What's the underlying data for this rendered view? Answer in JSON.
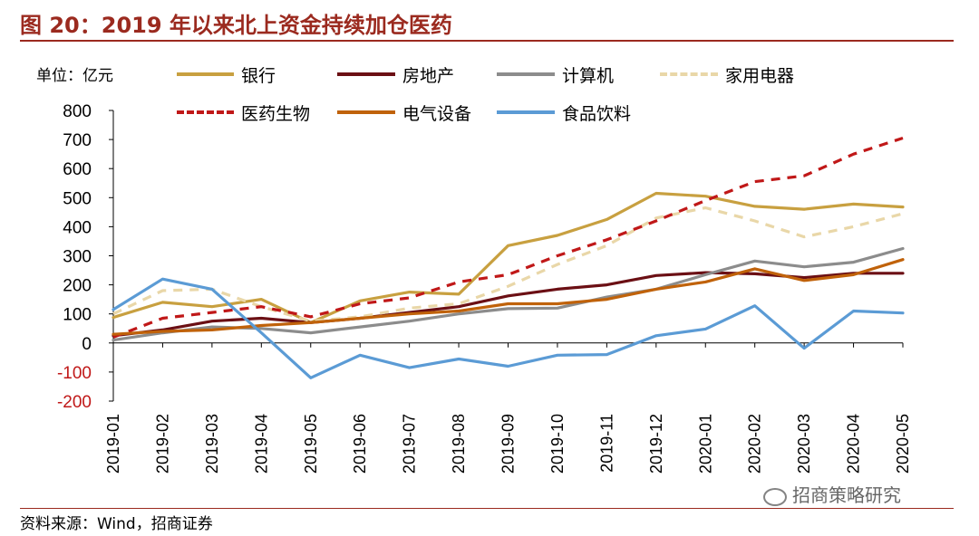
{
  "header": {
    "title": "图 20：2019 年以来北上资金持续加仓医药"
  },
  "footer": {
    "source": "资料来源：Wind，招商证券",
    "watermark": "招商策略研究"
  },
  "colors": {
    "title": "#9b2a1f",
    "bank": "#c8a040",
    "realestate": "#6b0f14",
    "computer": "#8c8c8c",
    "appliance": "#e9d7a8",
    "pharma": "#c01818",
    "electrical": "#c0620a",
    "food": "#5b9bd5"
  },
  "chart_data": {
    "type": "line",
    "unit_label": "单位：亿元",
    "x": [
      "2019-01",
      "2019-02",
      "2019-03",
      "2019-04",
      "2019-05",
      "2019-06",
      "2019-07",
      "2019-08",
      "2019-09",
      "2019-10",
      "2019-11",
      "2019-12",
      "2020-01",
      "2020-02",
      "2020-03",
      "2020-04",
      "2020-05"
    ],
    "ylim": [
      -200,
      800
    ],
    "yticks": [
      "800",
      "700",
      "600",
      "500",
      "400",
      "300",
      "200",
      "100",
      "0",
      "-100",
      "-200"
    ],
    "grid": false,
    "legend_position": "top",
    "series": [
      {
        "name": "银行",
        "style": "solid",
        "color_key": "bank",
        "values": [
          88,
          140,
          125,
          150,
          70,
          145,
          175,
          168,
          335,
          370,
          425,
          515,
          505,
          470,
          460,
          478,
          468
        ]
      },
      {
        "name": "房地产",
        "style": "solid",
        "color_key": "realestate",
        "values": [
          25,
          45,
          75,
          85,
          70,
          85,
          105,
          125,
          162,
          185,
          200,
          232,
          242,
          238,
          225,
          240,
          240
        ]
      },
      {
        "name": "计算机",
        "style": "solid",
        "color_key": "computer",
        "values": [
          10,
          35,
          55,
          50,
          35,
          55,
          75,
          100,
          118,
          120,
          158,
          185,
          235,
          282,
          262,
          278,
          325
        ]
      },
      {
        "name": "家用电器",
        "style": "dashed",
        "color_key": "appliance",
        "values": [
          100,
          180,
          185,
          125,
          75,
          90,
          120,
          135,
          195,
          270,
          335,
          430,
          465,
          420,
          365,
          400,
          445
        ]
      },
      {
        "name": "医药生物",
        "style": "dashed",
        "color_key": "pharma",
        "values": [
          20,
          85,
          105,
          125,
          90,
          135,
          155,
          210,
          235,
          300,
          355,
          420,
          490,
          555,
          575,
          650,
          705
        ]
      },
      {
        "name": "电气设备",
        "style": "solid",
        "color_key": "electrical",
        "values": [
          30,
          40,
          45,
          60,
          70,
          85,
          100,
          110,
          135,
          135,
          150,
          185,
          210,
          255,
          215,
          235,
          287
        ]
      },
      {
        "name": "食品饮料",
        "style": "solid",
        "color_key": "food",
        "values": [
          115,
          220,
          185,
          35,
          -120,
          -42,
          -85,
          -55,
          -80,
          -42,
          -40,
          25,
          48,
          128,
          -18,
          110,
          103
        ]
      }
    ]
  }
}
